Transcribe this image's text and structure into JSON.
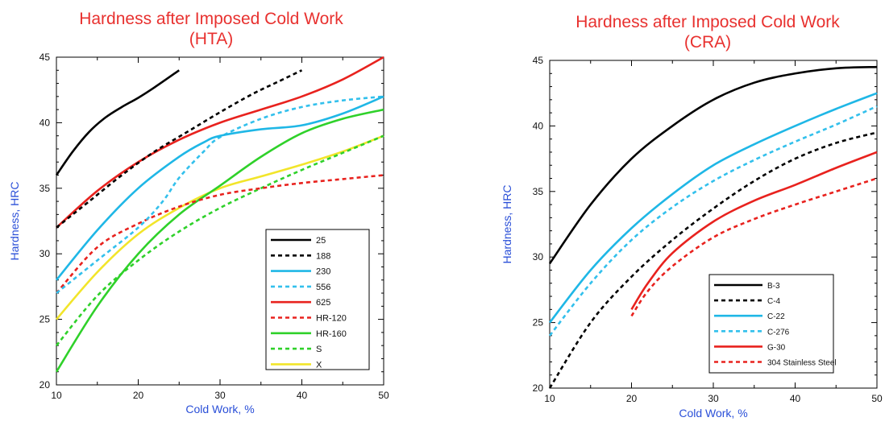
{
  "chart_data": [
    {
      "type": "line",
      "title": "Hardness after Imposed Cold Work",
      "subtitle": "(HTA)",
      "xlabel": "Cold Work, %",
      "ylabel": "Hardness, HRC",
      "xlim": [
        10,
        50
      ],
      "ylim": [
        20,
        45
      ],
      "xticks": [
        10,
        20,
        30,
        40,
        50
      ],
      "yticks": [
        20,
        25,
        30,
        35,
        40,
        45
      ],
      "legend_position": "bottom-right",
      "series": [
        {
          "name": "25",
          "color": "#000000",
          "style": "solid",
          "x": [
            10,
            12,
            14,
            16,
            18,
            20,
            22,
            25
          ],
          "y": [
            36,
            37.8,
            39.3,
            40.4,
            41.2,
            41.9,
            42.7,
            44
          ]
        },
        {
          "name": "188",
          "color": "#000000",
          "style": "dashed",
          "x": [
            10,
            14,
            18,
            22,
            26,
            30,
            34,
            37,
            40
          ],
          "y": [
            32,
            34,
            36,
            37.8,
            39.3,
            40.8,
            42.2,
            43.1,
            44
          ]
        },
        {
          "name": "230",
          "color": "#1fb7e6",
          "style": "solid",
          "x": [
            10,
            15,
            20,
            25,
            28,
            30,
            35,
            40,
            45,
            50
          ],
          "y": [
            28,
            31.8,
            35,
            37.4,
            38.5,
            39,
            39.5,
            39.8,
            40.7,
            42
          ]
        },
        {
          "name": "556",
          "color": "#33c0ec",
          "style": "dashed",
          "x": [
            10,
            15,
            20,
            23,
            25,
            28,
            30,
            35,
            40,
            45,
            50
          ],
          "y": [
            27,
            29.5,
            32,
            34,
            35.8,
            37.8,
            38.9,
            40.3,
            41.2,
            41.7,
            42
          ]
        },
        {
          "name": "625",
          "color": "#e8221e",
          "style": "solid",
          "x": [
            10,
            15,
            20,
            25,
            30,
            35,
            40,
            45,
            50
          ],
          "y": [
            32,
            34.8,
            37,
            38.7,
            40,
            41,
            42,
            43.3,
            45
          ]
        },
        {
          "name": "HR-120",
          "color": "#e8221e",
          "style": "dashed",
          "x": [
            10,
            15,
            20,
            25,
            30,
            35,
            40,
            45,
            50
          ],
          "y": [
            27,
            30.5,
            32.3,
            33.6,
            34.5,
            35,
            35.4,
            35.7,
            36
          ]
        },
        {
          "name": "HR-160",
          "color": "#2fd12a",
          "style": "solid",
          "x": [
            10,
            15,
            20,
            25,
            30,
            35,
            40,
            45,
            50
          ],
          "y": [
            21,
            26,
            30,
            33,
            35.2,
            37.4,
            39.2,
            40.3,
            41
          ]
        },
        {
          "name": "S",
          "color": "#2fd12a",
          "style": "dashed",
          "x": [
            10,
            15,
            20,
            25,
            30,
            35,
            40,
            45,
            50
          ],
          "y": [
            23,
            26.8,
            29.5,
            31.7,
            33.5,
            35,
            36.4,
            37.7,
            39
          ]
        },
        {
          "name": "X",
          "color": "#f2e52a",
          "style": "solid",
          "x": [
            10,
            15,
            20,
            25,
            30,
            35,
            40,
            45,
            50
          ],
          "y": [
            25,
            28.6,
            31.5,
            33.5,
            35,
            35.9,
            36.8,
            37.8,
            39
          ]
        }
      ]
    },
    {
      "type": "line",
      "title": "Hardness after Imposed Cold Work",
      "subtitle": "(CRA)",
      "xlabel": "Cold Work, %",
      "ylabel": "Hardness, HRC",
      "xlim": [
        10,
        50
      ],
      "ylim": [
        20,
        45
      ],
      "xticks": [
        10,
        20,
        30,
        40,
        50
      ],
      "yticks": [
        20,
        25,
        30,
        35,
        40,
        45
      ],
      "legend_position": "bottom-right",
      "series": [
        {
          "name": "B-3",
          "color": "#000000",
          "style": "solid",
          "x": [
            10,
            15,
            20,
            25,
            30,
            35,
            40,
            45,
            50
          ],
          "y": [
            29.5,
            34,
            37.5,
            40,
            42,
            43.3,
            44,
            44.4,
            44.5
          ]
        },
        {
          "name": "C-4",
          "color": "#000000",
          "style": "dashed",
          "x": [
            10,
            15,
            20,
            25,
            30,
            35,
            40,
            45,
            50
          ],
          "y": [
            20,
            25,
            28.5,
            31.3,
            33.7,
            35.8,
            37.5,
            38.7,
            39.5
          ]
        },
        {
          "name": "C-22",
          "color": "#1fb7e6",
          "style": "solid",
          "x": [
            10,
            15,
            20,
            25,
            30,
            35,
            40,
            45,
            50
          ],
          "y": [
            25,
            29,
            32.2,
            34.8,
            37,
            38.6,
            40,
            41.3,
            42.5
          ]
        },
        {
          "name": "C-276",
          "color": "#33c0ec",
          "style": "dashed",
          "x": [
            10,
            15,
            20,
            25,
            30,
            35,
            40,
            45,
            50
          ],
          "y": [
            24,
            28,
            31.3,
            33.8,
            35.8,
            37.4,
            38.8,
            40.1,
            41.5
          ]
        },
        {
          "name": "G-30",
          "color": "#e8221e",
          "style": "solid",
          "x": [
            20,
            22,
            25,
            30,
            35,
            40,
            45,
            50
          ],
          "y": [
            26,
            28,
            30.3,
            32.7,
            34.3,
            35.5,
            36.8,
            38
          ]
        },
        {
          "name": "304 Stainless Steel",
          "color": "#e8221e",
          "style": "dashed",
          "x": [
            20,
            22,
            25,
            30,
            35,
            40,
            45,
            50
          ],
          "y": [
            25.5,
            27.4,
            29.3,
            31.5,
            32.9,
            34,
            35,
            36
          ]
        }
      ]
    }
  ]
}
